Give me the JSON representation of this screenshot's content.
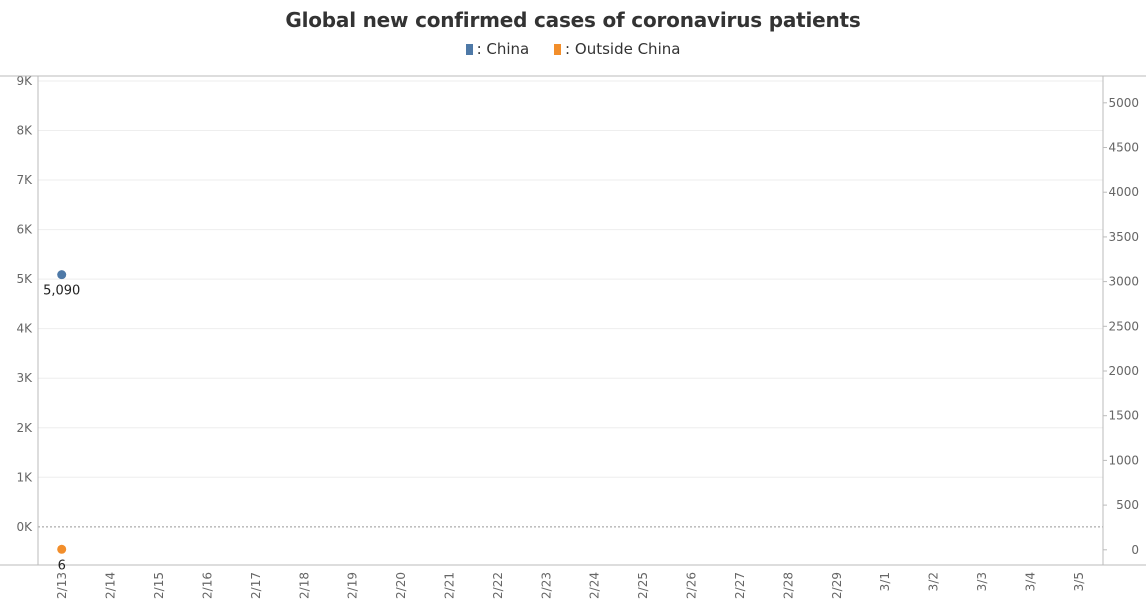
{
  "chart_data": {
    "type": "scatter",
    "title": "Global new confirmed cases of coronavirus patients",
    "xlabel": "",
    "ylabel": "",
    "categories": [
      "2/13",
      "2/14",
      "2/15",
      "2/16",
      "2/17",
      "2/18",
      "2/19",
      "2/20",
      "2/21",
      "2/22",
      "2/23",
      "2/24",
      "2/25",
      "2/26",
      "2/27",
      "2/28",
      "2/29",
      "3/1",
      "3/2",
      "3/3",
      "3/4",
      "3/5"
    ],
    "left_axis": {
      "ylim": [
        -770,
        9100
      ],
      "ticks": [
        0,
        1000,
        2000,
        3000,
        4000,
        5000,
        6000,
        7000,
        8000,
        9000
      ],
      "tick_labels": [
        "0K",
        "1K",
        "2K",
        "3K",
        "4K",
        "5K",
        "6K",
        "7K",
        "8K",
        "9K"
      ]
    },
    "right_axis": {
      "ylim": [
        -170,
        5300
      ],
      "ticks": [
        0,
        500,
        1000,
        1500,
        2000,
        2500,
        3000,
        3500,
        4000,
        4500,
        5000
      ],
      "tick_labels": [
        "0",
        "500",
        "1000",
        "1500",
        "2000",
        "2500",
        "3000",
        "3500",
        "4000",
        "4500",
        "5000"
      ]
    },
    "series": [
      {
        "name": "China",
        "axis": "left",
        "color": "#4e79a7",
        "x": [
          "2/13"
        ],
        "values": [
          5090
        ],
        "labels": [
          "5,090"
        ]
      },
      {
        "name": "Outside China",
        "axis": "right",
        "color": "#f28e2b",
        "x": [
          "2/13"
        ],
        "values": [
          6
        ],
        "labels": [
          "6"
        ]
      }
    ],
    "legend_placement": "top-center",
    "legend_separator": ":",
    "grid": true
  }
}
